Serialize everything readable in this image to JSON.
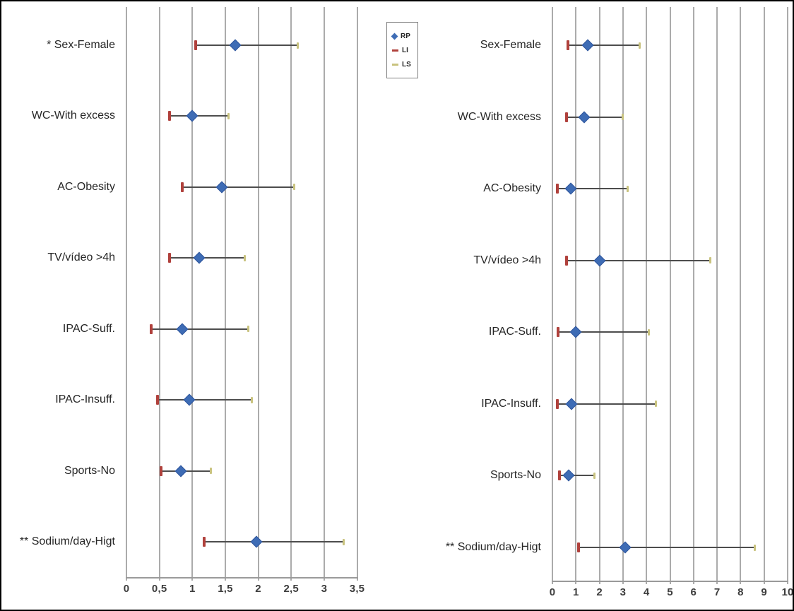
{
  "figure": {
    "background": "#ffffff",
    "border_color": "#000000"
  },
  "colors": {
    "rp_marker": "#3e6cb5",
    "rp_marker_edge": "#2f569c",
    "li_marker": "#b0413c",
    "ls_marker": "#c9c37f",
    "whisker": "#4d4d4d",
    "gridline": "#ababab",
    "axis_line": "#9a9a9a",
    "label_text": "#262626"
  },
  "legend": {
    "entries": [
      {
        "label": "RP",
        "marker": "diamond-icon",
        "color": "#3e6cb5"
      },
      {
        "label": "LI",
        "marker": "dash-icon",
        "color": "#b0413c"
      },
      {
        "label": "LS",
        "marker": "dash-icon",
        "color": "#c9c37f"
      }
    ]
  },
  "chart_data": [
    {
      "type": "scatter",
      "subtype": "forest-plot",
      "title": "",
      "xlabel": "",
      "ylabel": "",
      "grid": true,
      "legend_position": "right-of-plot-top",
      "x_axis": {
        "min": 0,
        "max": 3.5,
        "tick_values": [
          0,
          0.5,
          1,
          1.5,
          2,
          2.5,
          3,
          3.5
        ],
        "tick_labels": [
          "0",
          "0,5",
          "1",
          "1,5",
          "2",
          "2,5",
          "3",
          "3,5"
        ]
      },
      "series_keys": [
        "RP",
        "LI",
        "LS"
      ],
      "rows": [
        {
          "label": "* Sex-Female",
          "LI": 1.05,
          "RP": 1.65,
          "LS": 2.6
        },
        {
          "label": "WC-With excess",
          "LI": 0.65,
          "RP": 1.0,
          "LS": 1.55
        },
        {
          "label": "AC-Obesity",
          "LI": 0.85,
          "RP": 1.45,
          "LS": 2.55
        },
        {
          "label": "TV/vídeo >4h",
          "LI": 0.65,
          "RP": 1.1,
          "LS": 1.8
        },
        {
          "label": "IPAC-Suff.",
          "LI": 0.37,
          "RP": 0.85,
          "LS": 1.85
        },
        {
          "label": "IPAC-Insuff.",
          "LI": 0.47,
          "RP": 0.95,
          "LS": 1.9
        },
        {
          "label": "Sports-No",
          "LI": 0.53,
          "RP": 0.83,
          "LS": 1.28
        },
        {
          "label": "** Sodium/day-Higt",
          "LI": 1.18,
          "RP": 1.97,
          "LS": 3.3
        }
      ]
    },
    {
      "type": "scatter",
      "subtype": "forest-plot",
      "title": "",
      "xlabel": "",
      "ylabel": "",
      "grid": true,
      "legend_position": "none",
      "x_axis": {
        "min": 0,
        "max": 10,
        "tick_values": [
          0,
          1,
          2,
          3,
          4,
          5,
          6,
          7,
          8,
          9,
          10
        ],
        "tick_labels": [
          "0",
          "1",
          "2",
          "3",
          "4",
          "5",
          "6",
          "7",
          "8",
          "9",
          "10"
        ]
      },
      "series_keys": [
        "RP",
        "LI",
        "LS"
      ],
      "rows": [
        {
          "label": "Sex-Female",
          "LI": 0.65,
          "RP": 1.5,
          "LS": 3.7
        },
        {
          "label": "WC-With excess",
          "LI": 0.6,
          "RP": 1.35,
          "LS": 3.0
        },
        {
          "label": "AC-Obesity",
          "LI": 0.2,
          "RP": 0.78,
          "LS": 3.2
        },
        {
          "label": "TV/vídeo >4h",
          "LI": 0.6,
          "RP": 2.0,
          "LS": 6.7
        },
        {
          "label": "IPAC-Suff.",
          "LI": 0.25,
          "RP": 1.0,
          "LS": 4.1
        },
        {
          "label": "IPAC-Insuff.",
          "LI": 0.2,
          "RP": 0.8,
          "LS": 4.4
        },
        {
          "label": "Sports-No",
          "LI": 0.3,
          "RP": 0.7,
          "LS": 1.8
        },
        {
          "label": "** Sodium/day-Higt",
          "LI": 1.1,
          "RP": 3.1,
          "LS": 8.6
        }
      ]
    }
  ]
}
